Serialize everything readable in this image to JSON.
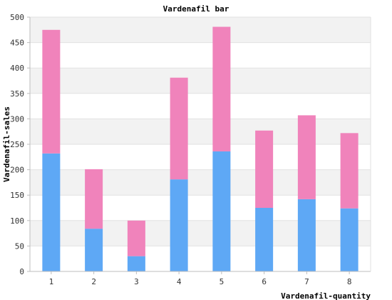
{
  "chart_data": {
    "type": "bar",
    "stacked": true,
    "title": "Vardenafil bar",
    "xlabel": "Vardenafil-quantity",
    "ylabel": "Vardenafil-sales",
    "categories": [
      "1",
      "2",
      "3",
      "4",
      "5",
      "6",
      "7",
      "8"
    ],
    "series": [
      {
        "values": [
          232,
          84,
          30,
          181,
          236,
          125,
          142,
          124
        ],
        "color": "#5ea8f5"
      },
      {
        "values": [
          243,
          117,
          70,
          200,
          245,
          152,
          165,
          148
        ],
        "color": "#f083bb"
      }
    ],
    "ylim": [
      0,
      500
    ],
    "yticks": [
      0,
      50,
      100,
      150,
      200,
      250,
      300,
      350,
      400,
      450,
      500
    ],
    "grid": true,
    "band_colors": [
      "#f2f2f2",
      "#ffffff"
    ]
  }
}
